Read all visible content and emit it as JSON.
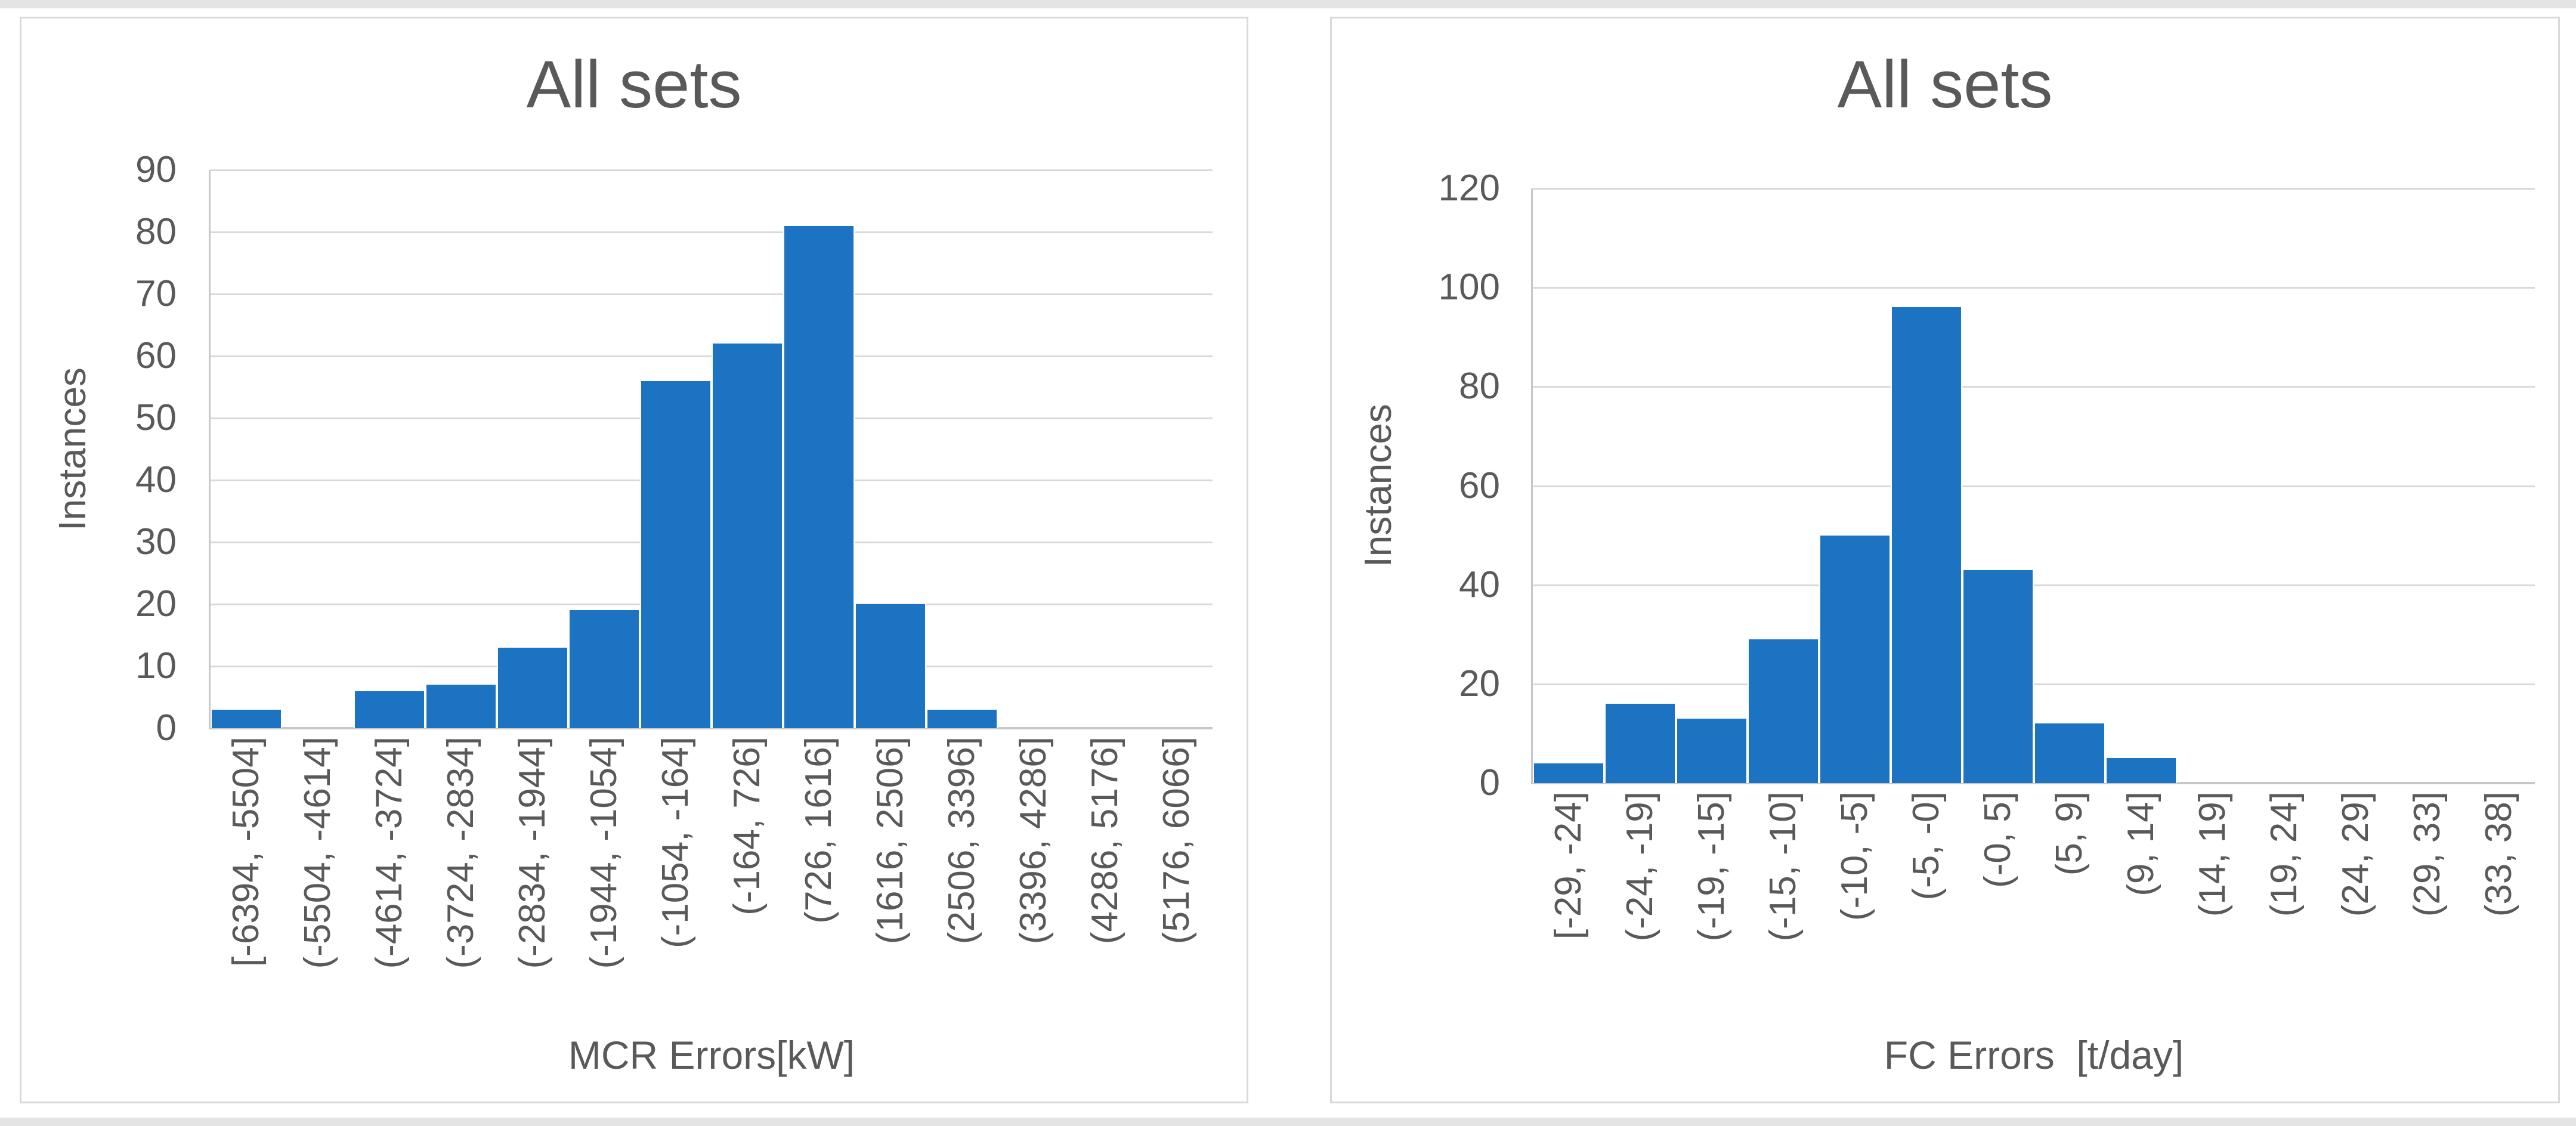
{
  "style": {
    "bar_color": "#1B73C2",
    "grid_color": "#D9D9D9",
    "axis_color": "#C7C7C7",
    "text_color": "#595959",
    "card_border_color": "#D9D9D9",
    "page_strip_color": "#E4E4E4",
    "background": "#FFFFFF"
  },
  "chart_data": [
    {
      "type": "bar",
      "title": "All sets",
      "ylabel": "Instances",
      "xlabel": "MCR Errors[kW]",
      "categories": [
        "[-6394, -5504]",
        "(-5504, -4614]",
        "(-4614, -3724]",
        "(-3724, -2834]",
        "(-2834, -1944]",
        "(-1944, -1054]",
        "(-1054, -164]",
        "(-164, 726]",
        "(726, 1616]",
        "(1616, 2506]",
        "(2506, 3396]",
        "(3396, 4286]",
        "(4286, 5176]",
        "(5176, 6066]"
      ],
      "values": [
        3,
        0,
        6,
        7,
        13,
        19,
        56,
        62,
        81,
        20,
        3,
        0,
        0,
        0
      ],
      "ylim": [
        0,
        90
      ],
      "yticks": [
        0,
        10,
        20,
        30,
        40,
        50,
        60,
        70,
        80,
        90
      ],
      "grid": true,
      "legend_position": "none"
    },
    {
      "type": "bar",
      "title": "All sets",
      "ylabel": "Instances",
      "xlabel": "FC Errors  [t/day]",
      "categories": [
        "[-29, -24]",
        "(-24, -19]",
        "(-19, -15]",
        "(-15, -10]",
        "(-10, -5]",
        "(-5, -0]",
        "(-0, 5]",
        "(5, 9]",
        "(9, 14]",
        "(14, 19]",
        "(19, 24]",
        "(24, 29]",
        "(29, 33]",
        "(33, 38]"
      ],
      "values": [
        4,
        16,
        13,
        29,
        50,
        96,
        43,
        12,
        5,
        0,
        0,
        0,
        0,
        0
      ],
      "ylim": [
        0,
        120
      ],
      "yticks": [
        0,
        20,
        40,
        60,
        80,
        100,
        120
      ],
      "grid": true,
      "legend_position": "none"
    }
  ]
}
